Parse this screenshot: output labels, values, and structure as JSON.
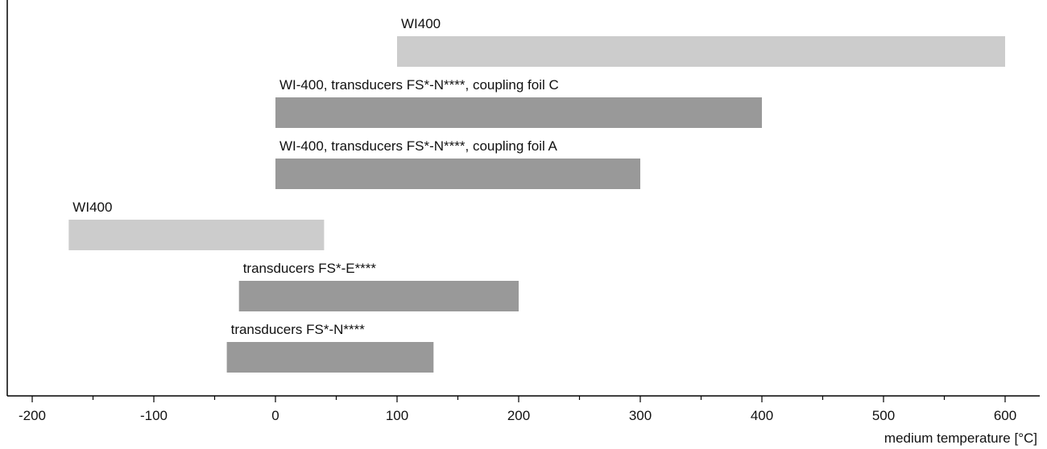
{
  "chart_data": {
    "type": "bar",
    "orientation": "horizontal-range",
    "xlabel": "medium temperature [°C]",
    "xlim": [
      -200,
      620
    ],
    "x_ticks": [
      -200,
      -100,
      0,
      100,
      200,
      300,
      400,
      500,
      600
    ],
    "x_tick_labels": [
      "-200",
      "-100",
      "0",
      "100",
      "200",
      "300",
      "400",
      "500",
      "600"
    ],
    "x_minor_ticks": [
      -150,
      -50,
      50,
      150,
      250,
      350,
      450,
      550
    ],
    "grid": false,
    "legend": "none",
    "colors": {
      "light": "#cccccc",
      "dark": "#999999",
      "axis": "#000000",
      "text": "#111111"
    },
    "series": [
      {
        "label": "WI400",
        "start": 100,
        "end": 600,
        "color": "light"
      },
      {
        "label": "WI-400, transducers FS*-N****, coupling foil C",
        "start": 0,
        "end": 400,
        "color": "dark"
      },
      {
        "label": "WI-400, transducers FS*-N****, coupling foil A",
        "start": 0,
        "end": 300,
        "color": "dark"
      },
      {
        "label": "WI400",
        "start": -170,
        "end": 40,
        "color": "light"
      },
      {
        "label": "transducers FS*-E****",
        "start": -30,
        "end": 200,
        "color": "dark"
      },
      {
        "label": "transducers FS*-N****",
        "start": -40,
        "end": 130,
        "color": "dark"
      }
    ]
  }
}
